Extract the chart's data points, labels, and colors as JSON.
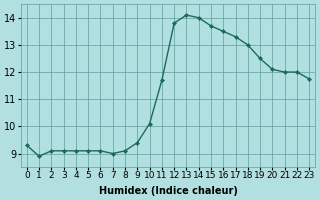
{
  "xlabel": "Humidex (Indice chaleur)",
  "ylabel": "",
  "background_color": "#b2e0e0",
  "grid_color": "#5a9ea0",
  "line_color": "#1a6b5a",
  "marker_color": "#1a6b5a",
  "xlim": [
    -0.5,
    23.5
  ],
  "ylim": [
    8.5,
    14.5
  ],
  "yticks": [
    9,
    10,
    11,
    12,
    13,
    14
  ],
  "xtick_labels": [
    "0",
    "1",
    "2",
    "3",
    "4",
    "5",
    "6",
    "7",
    "8",
    "9",
    "10",
    "11",
    "12",
    "13",
    "14",
    "15",
    "16",
    "17",
    "18",
    "19",
    "20",
    "21",
    "22",
    "23"
  ],
  "x": [
    0,
    1,
    2,
    3,
    4,
    5,
    6,
    7,
    8,
    9,
    10,
    11,
    12,
    13,
    14,
    15,
    16,
    17,
    18,
    19,
    20,
    21,
    22,
    23
  ],
  "y": [
    9.3,
    8.9,
    9.1,
    9.1,
    9.1,
    9.1,
    9.1,
    9.0,
    9.1,
    9.4,
    10.1,
    11.7,
    13.8,
    14.1,
    14.0,
    13.7,
    13.5,
    13.3,
    13.0,
    12.5,
    12.1,
    12.0,
    12.0,
    11.75
  ]
}
